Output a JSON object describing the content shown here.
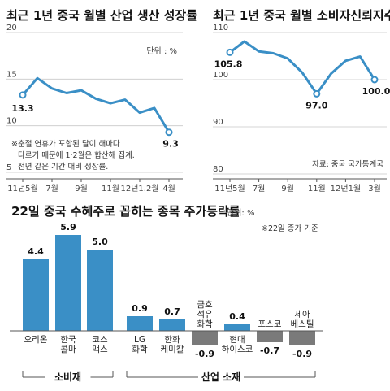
{
  "chart_data": [
    {
      "type": "line",
      "title": "최근 1년 중국 월별 산업 생산 성장률",
      "unit": "단위 : %",
      "x_ticks": [
        "11년5월",
        "7월",
        "9월",
        "11월",
        "12년1.2월",
        "4월"
      ],
      "x": [
        "2011-05",
        "2011-06",
        "2011-07",
        "2011-08",
        "2011-09",
        "2011-10",
        "2011-11",
        "2011-12",
        "2012-01/02",
        "2012-03",
        "2012-04"
      ],
      "values": [
        13.3,
        15.1,
        14.0,
        13.5,
        13.8,
        12.9,
        12.4,
        12.8,
        11.4,
        11.9,
        9.3
      ],
      "y_ticks": [
        "20",
        "15",
        "10",
        "5"
      ],
      "ylim": [
        5,
        20
      ],
      "value_labels": [
        {
          "index": 0,
          "text": "13.3"
        },
        {
          "index": 10,
          "text": "9.3"
        }
      ],
      "notes": [
        "※춘절 연휴가 포함된 달이 해마다",
        "다르기 때문에 1·2월은 합산해 집계.",
        "전년 같은 기간 대비 성장률."
      ]
    },
    {
      "type": "line",
      "title": "최근 1년 중국 월별 소비자신뢰지수",
      "x_ticks": [
        "11년5월",
        "7월",
        "9월",
        "11월",
        "12년1월",
        "3월"
      ],
      "x": [
        "2011-05",
        "2011-06",
        "2011-07",
        "2011-08",
        "2011-09",
        "2011-10",
        "2011-11",
        "2011-12",
        "2012-01",
        "2012-02",
        "2012-03"
      ],
      "values": [
        105.8,
        108.1,
        106.0,
        105.6,
        104.5,
        101.5,
        97.0,
        101.3,
        104.0,
        104.9,
        100.0
      ],
      "y_ticks": [
        "110",
        "100",
        "90",
        "80"
      ],
      "ylim": [
        80,
        110
      ],
      "value_labels": [
        {
          "index": 0,
          "text": "105.8"
        },
        {
          "index": 6,
          "text": "97.0"
        },
        {
          "index": 10,
          "text": "100.0"
        }
      ],
      "source": "자료: 중국 국가통계국"
    },
    {
      "type": "bar",
      "title": "22일 중국 수혜주로 꼽히는 종목 주가등락률",
      "unit": "단위: %",
      "note": "※22일 종가 기준",
      "categories": [
        [
          "오리온"
        ],
        [
          "한국",
          "콜마"
        ],
        [
          "코스",
          "맥스"
        ],
        [
          "LG",
          "화학"
        ],
        [
          "한화",
          "케미칼"
        ],
        [
          "금호",
          "석유",
          "화학"
        ],
        [
          "현대",
          "하이스코"
        ],
        [
          "포스코"
        ],
        [
          "세아",
          "베스틸"
        ]
      ],
      "values": [
        4.4,
        5.9,
        5.0,
        0.9,
        0.7,
        -0.9,
        0.4,
        -0.7,
        -0.9
      ],
      "value_labels": [
        "4.4",
        "5.9",
        "5.0",
        "0.9",
        "0.7",
        "-0.9",
        "0.4",
        "-0.7",
        "-0.9"
      ],
      "groups": [
        {
          "name": "소비재",
          "from": 0,
          "to": 2
        },
        {
          "name": "산업 소재",
          "from": 3,
          "to": 8
        }
      ],
      "colors": {
        "positive": "#3a8fc6",
        "negative": "#7a7a7a",
        "line": "#3a8fc6"
      }
    }
  ]
}
